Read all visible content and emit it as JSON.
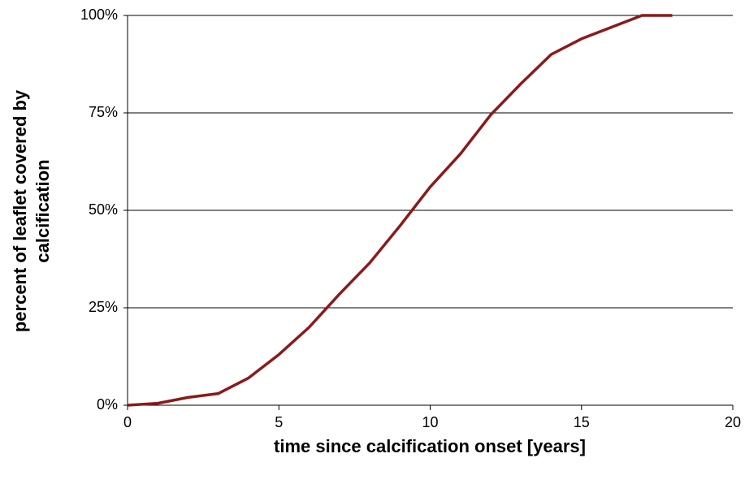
{
  "chart_data": {
    "type": "line",
    "xlabel": "time since calcification onset [years]",
    "ylabel": [
      "percent of leaflet covered by",
      "calcification"
    ],
    "x": [
      0,
      1,
      2,
      3,
      4,
      5,
      6,
      7,
      8,
      9,
      10,
      11,
      12,
      13,
      14,
      15,
      16,
      17,
      18
    ],
    "series": [
      {
        "name": "calcification",
        "color": "#8b1a1a",
        "values": [
          0,
          0.5,
          2,
          3,
          7,
          13,
          20,
          28.5,
          36.5,
          46,
          56,
          64.5,
          74.5,
          82.5,
          90,
          94,
          97,
          100,
          100
        ]
      }
    ],
    "xlim": [
      0,
      20
    ],
    "xticks": [
      0,
      5,
      10,
      15,
      20
    ],
    "ylim": [
      0,
      100
    ],
    "yticks": [
      {
        "value": 0,
        "label": "0%"
      },
      {
        "value": 25,
        "label": "25%"
      },
      {
        "value": 50,
        "label": "50%"
      },
      {
        "value": 75,
        "label": "75%"
      },
      {
        "value": 100,
        "label": "100%"
      }
    ],
    "grid": true
  }
}
